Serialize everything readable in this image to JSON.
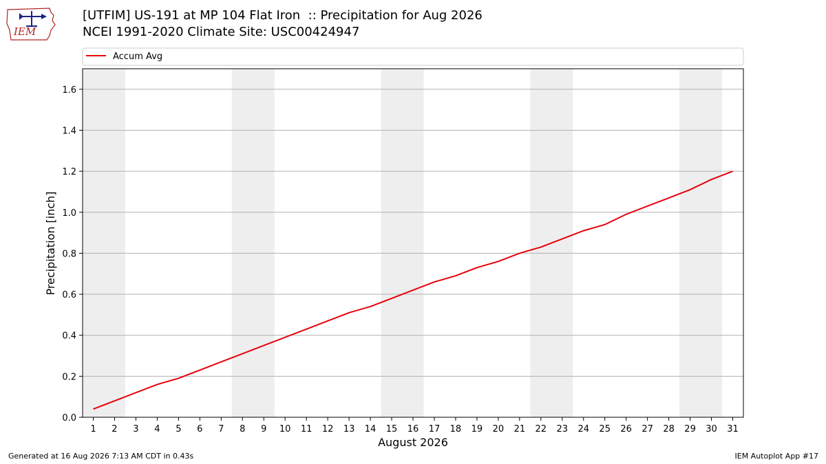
{
  "title": {
    "line1": "[UTFIM] US-191 at MP 104 Flat Iron  :: Precipitation for Aug 2026",
    "line2": "NCEI 1991-2020 Climate Site: USC00424947"
  },
  "logo": {
    "text": "IEM",
    "icon": "iem-logo-icon"
  },
  "footer": {
    "generated": "Generated at 16 Aug 2026 7:13 AM CDT in 0.43s",
    "app": "IEM Autoplot App #17"
  },
  "colors": {
    "series": "#e8000b",
    "weekend_band": "#eeeeee",
    "grid": "#b0b0b0"
  },
  "chart_data": {
    "type": "line",
    "title": "[UTFIM] US-191 at MP 104 Flat Iron  :: Precipitation for Aug 2026",
    "subtitle": "NCEI 1991-2020 Climate Site: USC00424947",
    "xlabel": "August 2026",
    "ylabel": "Precipitation [inch]",
    "x": [
      1,
      2,
      3,
      4,
      5,
      6,
      7,
      8,
      9,
      10,
      11,
      12,
      13,
      14,
      15,
      16,
      17,
      18,
      19,
      20,
      21,
      22,
      23,
      24,
      25,
      26,
      27,
      28,
      29,
      30,
      31
    ],
    "xlim": [
      0.5,
      31.5
    ],
    "ylim": [
      0,
      1.7
    ],
    "yticks": [
      0.0,
      0.2,
      0.4,
      0.6,
      0.8,
      1.0,
      1.2,
      1.4,
      1.6
    ],
    "ytick_labels": [
      "0.0",
      "0.2",
      "0.4",
      "0.6",
      "0.8",
      "1.0",
      "1.2",
      "1.4",
      "1.6"
    ],
    "grid": "horizontal",
    "legend": "top, above plot",
    "shaded_weekend_days": [
      [
        1,
        2
      ],
      [
        8,
        9
      ],
      [
        15,
        16
      ],
      [
        22,
        23
      ],
      [
        29,
        30
      ]
    ],
    "series": [
      {
        "name": "Accum Avg",
        "color": "#e8000b",
        "values": [
          0.04,
          0.08,
          0.12,
          0.16,
          0.19,
          0.23,
          0.27,
          0.31,
          0.35,
          0.39,
          0.43,
          0.47,
          0.51,
          0.54,
          0.58,
          0.62,
          0.66,
          0.69,
          0.73,
          0.76,
          0.8,
          0.83,
          0.87,
          0.91,
          0.94,
          0.99,
          1.03,
          1.07,
          1.11,
          1.16,
          1.2
        ]
      }
    ]
  }
}
